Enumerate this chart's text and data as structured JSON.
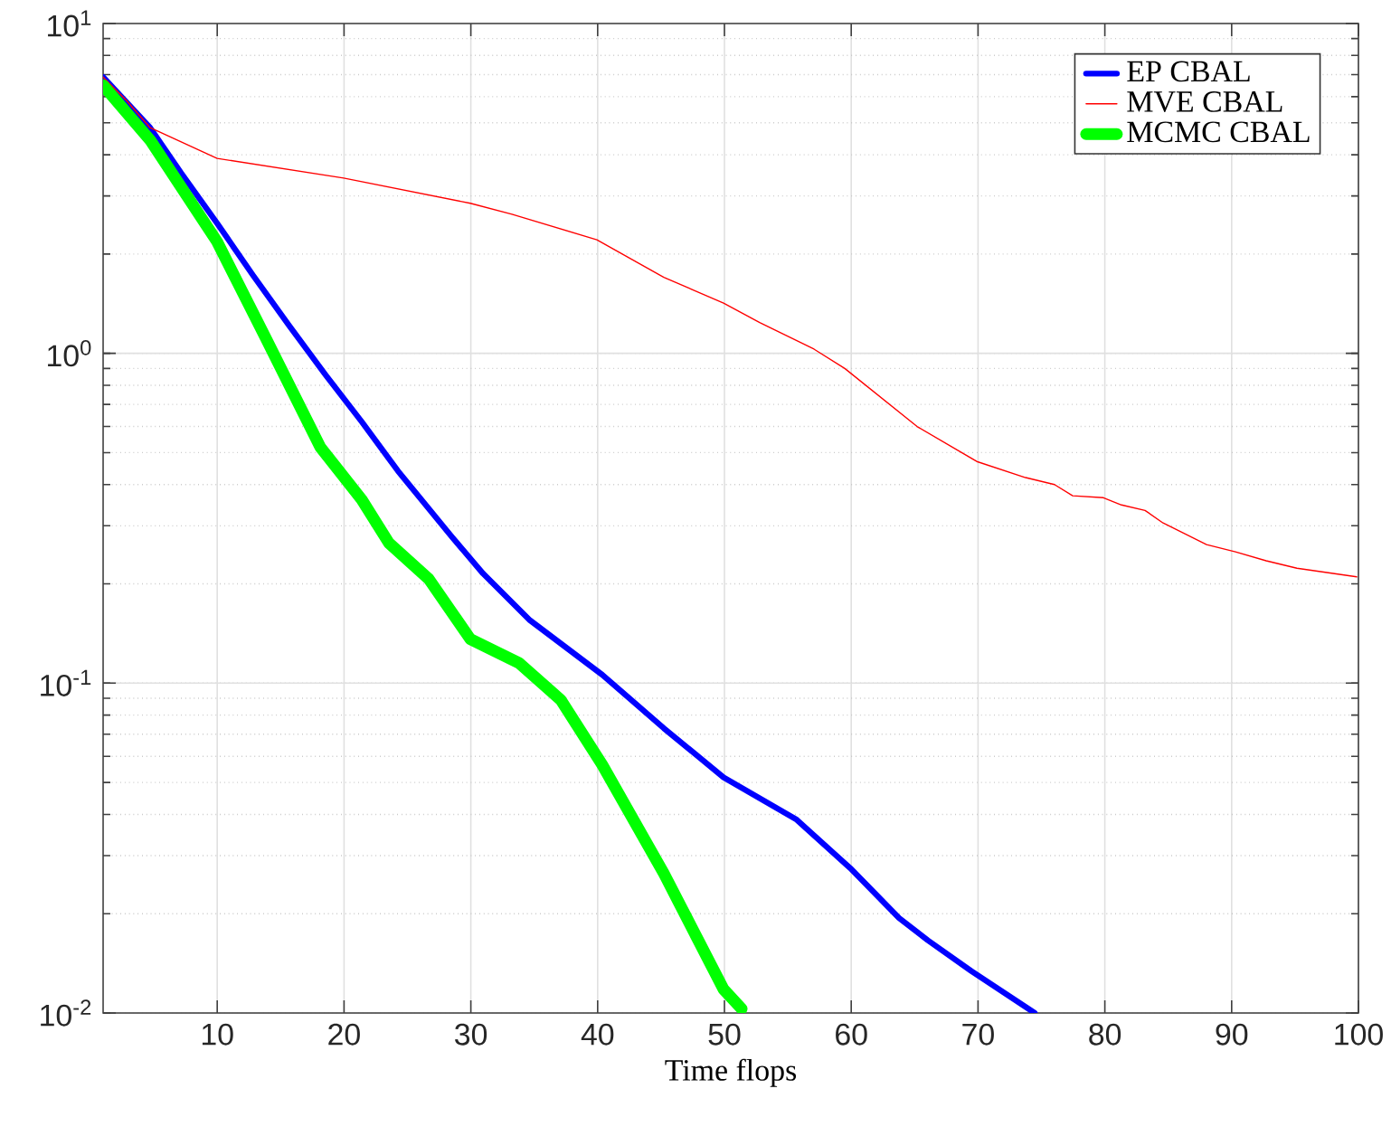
{
  "chart_data": {
    "type": "line",
    "xlabel": "Time flops",
    "series": [
      {
        "name": "EP CBAL",
        "color": "#0000ff",
        "x": [
          1,
          4.71,
          7.13,
          9.99,
          12.84,
          15.69,
          18.55,
          21.4,
          24.25,
          28.53,
          30.96,
          34.67,
          40.37,
          45.22,
          49.93,
          55.64,
          59.92,
          63.77,
          66.05,
          69.47,
          74.47
        ],
        "values": [
          6.88,
          4.83,
          3.53,
          2.48,
          1.72,
          1.21,
          0.86,
          0.62,
          0.44,
          0.277,
          0.215,
          0.155,
          0.106,
          0.073,
          0.0518,
          0.0387,
          0.0275,
          0.0194,
          0.0166,
          0.0134,
          0.01
        ]
      },
      {
        "name": "MVE CBAL",
        "color": "#ff0000",
        "x": [
          1,
          2.85,
          4.71,
          9.99,
          19.97,
          29.96,
          33.24,
          39.94,
          45.22,
          49.93,
          52.78,
          57.06,
          59.49,
          65.19,
          69.9,
          73.75,
          76.03,
          77.46,
          79.89,
          81.31,
          83.17,
          84.59,
          88.02,
          90.3,
          92.72,
          95.15,
          99.86
        ],
        "values": [
          6.88,
          5.84,
          4.83,
          3.9,
          3.4,
          2.85,
          2.64,
          2.21,
          1.7,
          1.42,
          1.24,
          1.03,
          0.9,
          0.6,
          0.47,
          0.42,
          0.4,
          0.37,
          0.365,
          0.347,
          0.334,
          0.306,
          0.263,
          0.25,
          0.235,
          0.223,
          0.21
        ]
      },
      {
        "name": "MCMC CBAL",
        "color": "#00ff00",
        "x": [
          1,
          4.71,
          9.99,
          13.84,
          18.12,
          21.4,
          23.54,
          26.68,
          29.96,
          33.81,
          37.09,
          40.37,
          45.22,
          49.93,
          51.36
        ],
        "values": [
          6.5,
          4.43,
          2.18,
          1.11,
          0.52,
          0.36,
          0.266,
          0.207,
          0.136,
          0.115,
          0.089,
          0.0565,
          0.0265,
          0.0118,
          0.0103
        ]
      }
    ],
    "xlim": [
      1,
      100
    ],
    "xticks": [
      10,
      20,
      30,
      40,
      50,
      60,
      70,
      80,
      90,
      100
    ],
    "ylim": [
      0.01,
      10
    ],
    "yticks": [
      {
        "value": 0.01,
        "label": "10$^{-2}$"
      },
      {
        "value": 0.1,
        "label": "10$^{-1}$"
      },
      {
        "value": 1,
        "label": "10$^{0}$"
      },
      {
        "value": 10,
        "label": "10$^{1}$"
      }
    ],
    "log": "y",
    "grid": true,
    "legend": "top right",
    "marker": "none",
    "line_style": "solid"
  }
}
